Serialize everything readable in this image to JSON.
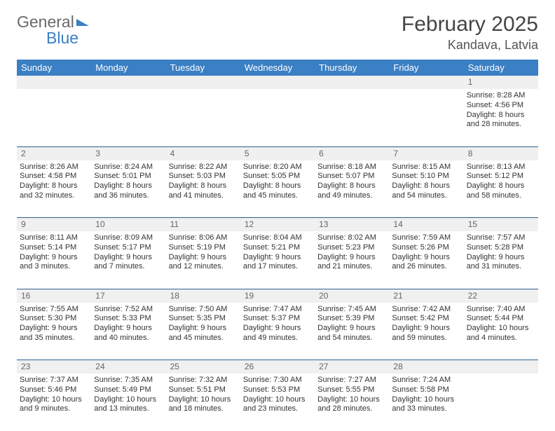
{
  "brand": {
    "part1": "General",
    "part2": "Blue"
  },
  "title": "February 2025",
  "location": "Kandava, Latvia",
  "weekdays": [
    "Sunday",
    "Monday",
    "Tuesday",
    "Wednesday",
    "Thursday",
    "Friday",
    "Saturday"
  ],
  "colors": {
    "header_blue": "#3b7fc4",
    "divider": "#2f5f8f",
    "light_row": "#f0f0f0",
    "text": "#333333"
  },
  "weeks": [
    [
      null,
      null,
      null,
      null,
      null,
      null,
      {
        "n": "1",
        "sunrise": "Sunrise: 8:28 AM",
        "sunset": "Sunset: 4:56 PM",
        "day": "Daylight: 8 hours and 28 minutes."
      }
    ],
    [
      {
        "n": "2",
        "sunrise": "Sunrise: 8:26 AM",
        "sunset": "Sunset: 4:58 PM",
        "day": "Daylight: 8 hours and 32 minutes."
      },
      {
        "n": "3",
        "sunrise": "Sunrise: 8:24 AM",
        "sunset": "Sunset: 5:01 PM",
        "day": "Daylight: 8 hours and 36 minutes."
      },
      {
        "n": "4",
        "sunrise": "Sunrise: 8:22 AM",
        "sunset": "Sunset: 5:03 PM",
        "day": "Daylight: 8 hours and 41 minutes."
      },
      {
        "n": "5",
        "sunrise": "Sunrise: 8:20 AM",
        "sunset": "Sunset: 5:05 PM",
        "day": "Daylight: 8 hours and 45 minutes."
      },
      {
        "n": "6",
        "sunrise": "Sunrise: 8:18 AM",
        "sunset": "Sunset: 5:07 PM",
        "day": "Daylight: 8 hours and 49 minutes."
      },
      {
        "n": "7",
        "sunrise": "Sunrise: 8:15 AM",
        "sunset": "Sunset: 5:10 PM",
        "day": "Daylight: 8 hours and 54 minutes."
      },
      {
        "n": "8",
        "sunrise": "Sunrise: 8:13 AM",
        "sunset": "Sunset: 5:12 PM",
        "day": "Daylight: 8 hours and 58 minutes."
      }
    ],
    [
      {
        "n": "9",
        "sunrise": "Sunrise: 8:11 AM",
        "sunset": "Sunset: 5:14 PM",
        "day": "Daylight: 9 hours and 3 minutes."
      },
      {
        "n": "10",
        "sunrise": "Sunrise: 8:09 AM",
        "sunset": "Sunset: 5:17 PM",
        "day": "Daylight: 9 hours and 7 minutes."
      },
      {
        "n": "11",
        "sunrise": "Sunrise: 8:06 AM",
        "sunset": "Sunset: 5:19 PM",
        "day": "Daylight: 9 hours and 12 minutes."
      },
      {
        "n": "12",
        "sunrise": "Sunrise: 8:04 AM",
        "sunset": "Sunset: 5:21 PM",
        "day": "Daylight: 9 hours and 17 minutes."
      },
      {
        "n": "13",
        "sunrise": "Sunrise: 8:02 AM",
        "sunset": "Sunset: 5:23 PM",
        "day": "Daylight: 9 hours and 21 minutes."
      },
      {
        "n": "14",
        "sunrise": "Sunrise: 7:59 AM",
        "sunset": "Sunset: 5:26 PM",
        "day": "Daylight: 9 hours and 26 minutes."
      },
      {
        "n": "15",
        "sunrise": "Sunrise: 7:57 AM",
        "sunset": "Sunset: 5:28 PM",
        "day": "Daylight: 9 hours and 31 minutes."
      }
    ],
    [
      {
        "n": "16",
        "sunrise": "Sunrise: 7:55 AM",
        "sunset": "Sunset: 5:30 PM",
        "day": "Daylight: 9 hours and 35 minutes."
      },
      {
        "n": "17",
        "sunrise": "Sunrise: 7:52 AM",
        "sunset": "Sunset: 5:33 PM",
        "day": "Daylight: 9 hours and 40 minutes."
      },
      {
        "n": "18",
        "sunrise": "Sunrise: 7:50 AM",
        "sunset": "Sunset: 5:35 PM",
        "day": "Daylight: 9 hours and 45 minutes."
      },
      {
        "n": "19",
        "sunrise": "Sunrise: 7:47 AM",
        "sunset": "Sunset: 5:37 PM",
        "day": "Daylight: 9 hours and 49 minutes."
      },
      {
        "n": "20",
        "sunrise": "Sunrise: 7:45 AM",
        "sunset": "Sunset: 5:39 PM",
        "day": "Daylight: 9 hours and 54 minutes."
      },
      {
        "n": "21",
        "sunrise": "Sunrise: 7:42 AM",
        "sunset": "Sunset: 5:42 PM",
        "day": "Daylight: 9 hours and 59 minutes."
      },
      {
        "n": "22",
        "sunrise": "Sunrise: 7:40 AM",
        "sunset": "Sunset: 5:44 PM",
        "day": "Daylight: 10 hours and 4 minutes."
      }
    ],
    [
      {
        "n": "23",
        "sunrise": "Sunrise: 7:37 AM",
        "sunset": "Sunset: 5:46 PM",
        "day": "Daylight: 10 hours and 9 minutes."
      },
      {
        "n": "24",
        "sunrise": "Sunrise: 7:35 AM",
        "sunset": "Sunset: 5:49 PM",
        "day": "Daylight: 10 hours and 13 minutes."
      },
      {
        "n": "25",
        "sunrise": "Sunrise: 7:32 AM",
        "sunset": "Sunset: 5:51 PM",
        "day": "Daylight: 10 hours and 18 minutes."
      },
      {
        "n": "26",
        "sunrise": "Sunrise: 7:30 AM",
        "sunset": "Sunset: 5:53 PM",
        "day": "Daylight: 10 hours and 23 minutes."
      },
      {
        "n": "27",
        "sunrise": "Sunrise: 7:27 AM",
        "sunset": "Sunset: 5:55 PM",
        "day": "Daylight: 10 hours and 28 minutes."
      },
      {
        "n": "28",
        "sunrise": "Sunrise: 7:24 AM",
        "sunset": "Sunset: 5:58 PM",
        "day": "Daylight: 10 hours and 33 minutes."
      },
      null
    ]
  ]
}
